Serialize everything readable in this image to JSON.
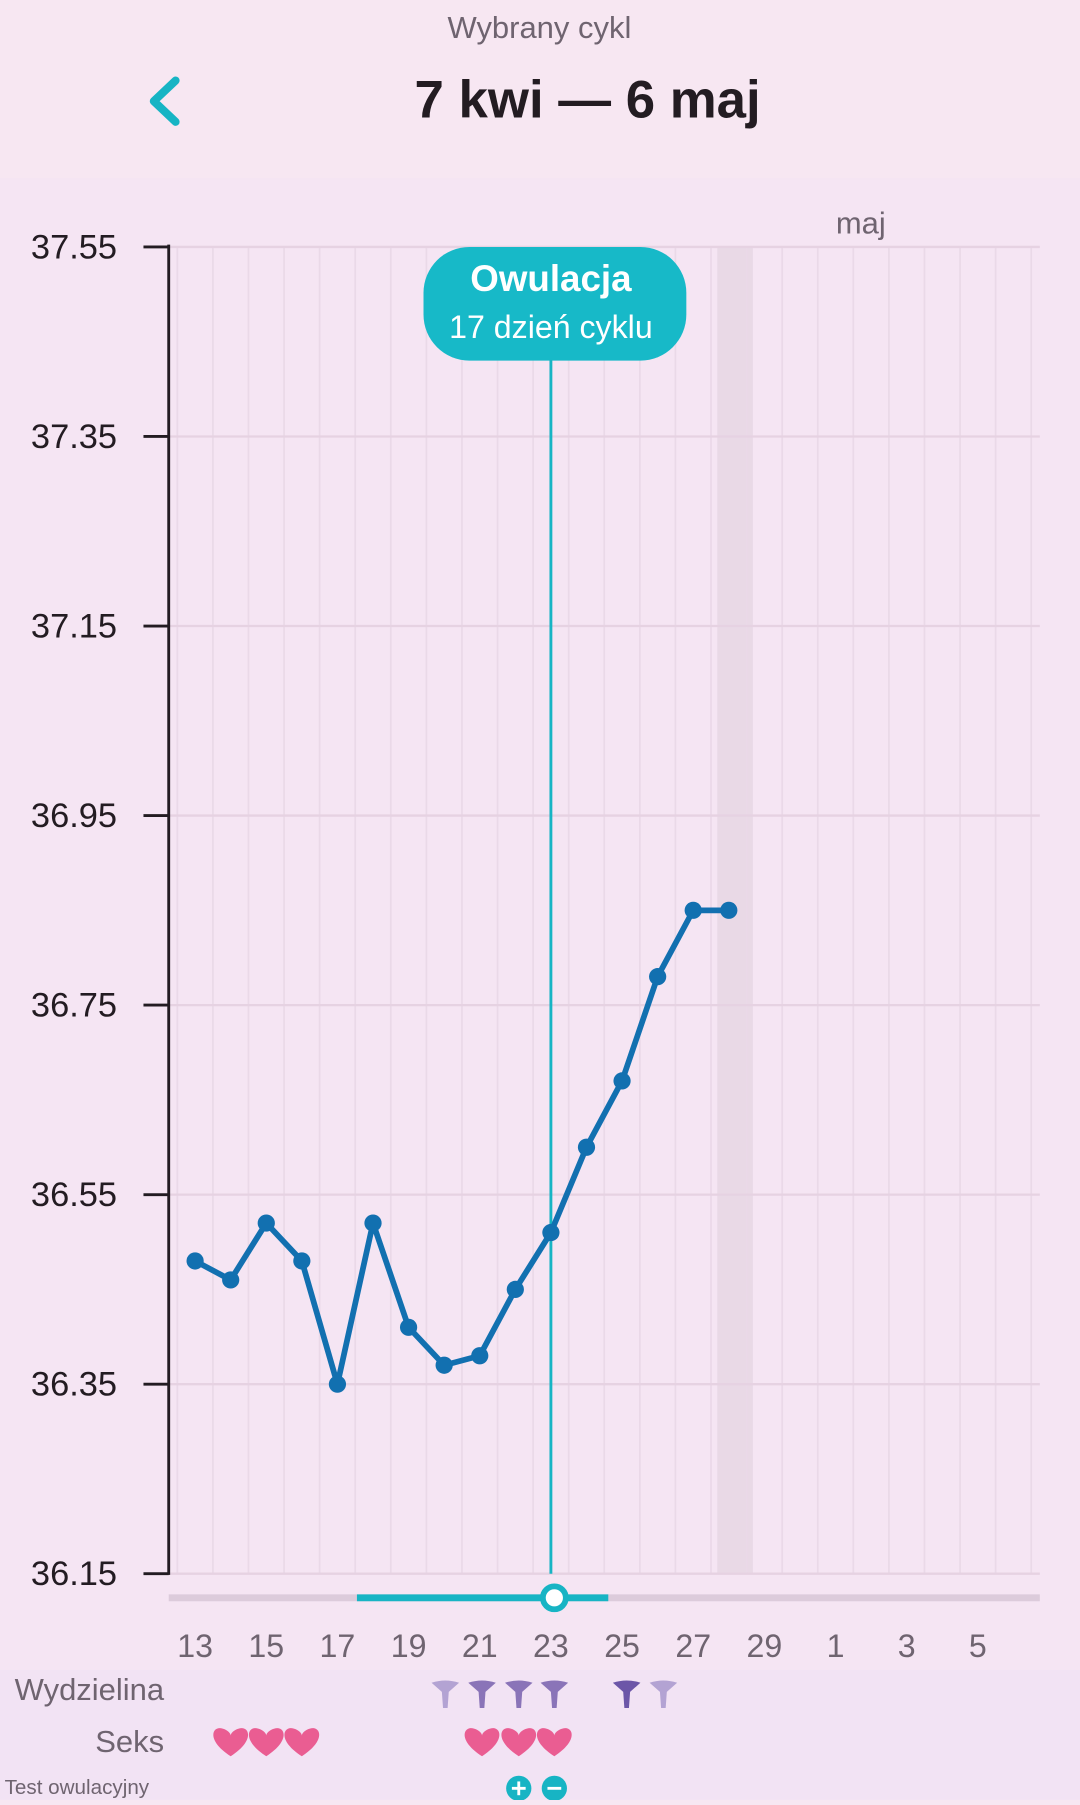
{
  "header": {
    "subtitle": "Wybrany cykl",
    "title": "7 kwi — 6 maj"
  },
  "chart_data": {
    "type": "line",
    "month_label": "maj",
    "categories": [
      "13",
      null,
      "15",
      null,
      "17",
      null,
      "19",
      null,
      "21",
      null,
      "23",
      null,
      "25",
      null,
      "27",
      null,
      "29",
      null,
      "1",
      null,
      "3",
      null,
      "5",
      null
    ],
    "values": [
      36.48,
      36.46,
      36.52,
      36.48,
      36.35,
      36.52,
      36.41,
      36.37,
      36.38,
      36.45,
      36.51,
      36.6,
      36.67,
      36.78,
      36.85,
      36.85,
      null,
      null,
      null,
      null,
      null,
      null,
      null,
      null
    ],
    "color": "#1270b0",
    "ylim": [
      36.15,
      37.55
    ],
    "yticks": [
      36.15,
      36.35,
      36.55,
      36.75,
      36.95,
      37.15,
      37.35,
      37.55
    ],
    "grid": true,
    "annotation": {
      "title": "Owulacja",
      "subtitle": "17 dzień cyklu"
    }
  },
  "rows": [
    "Wydzielina",
    "Seks",
    "Test owulacyjny"
  ]
}
